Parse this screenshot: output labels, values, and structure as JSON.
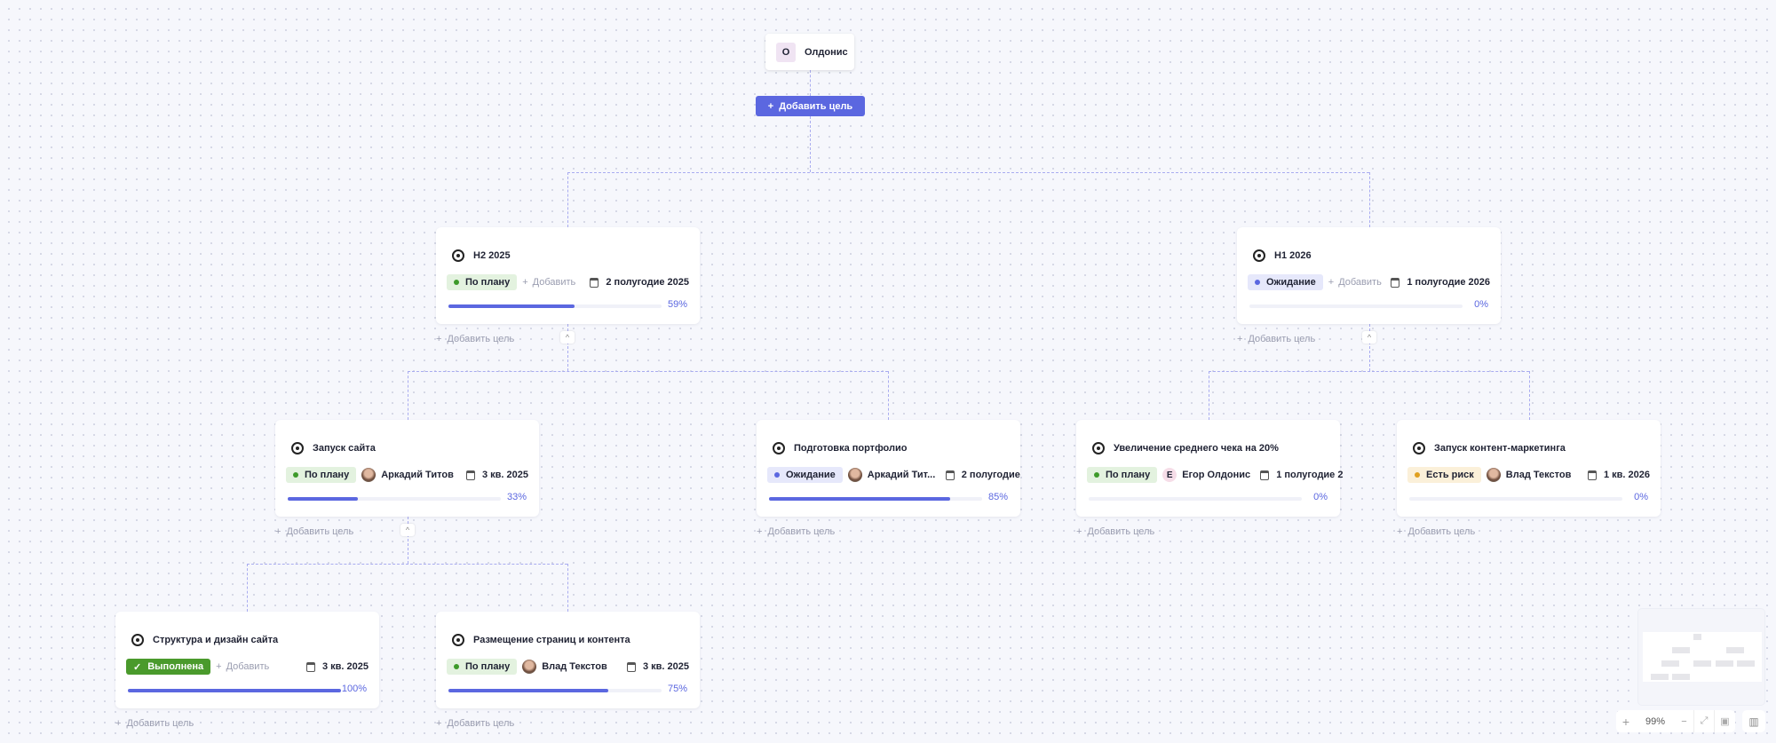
{
  "root": {
    "avatar_letter": "О",
    "name": "Олдонис"
  },
  "add_goal_button": "Добавить цель",
  "add_label": "Добавить",
  "add_child_label": "Добавить цель",
  "colors": {
    "accent": "#5b67e0",
    "on_plan": "#e3f2df",
    "waiting": "#e6e8fb",
    "risk": "#fbf0d9",
    "done": "#4a9a2c"
  },
  "cards": [
    {
      "title": "H2 2025",
      "status": "По плану",
      "status_kind": "on_plan",
      "owner": null,
      "date": "2 полугодие 2025",
      "progress": 59,
      "progress_label": "59%"
    },
    {
      "title": "H1 2026",
      "status": "Ожидание",
      "status_kind": "waiting",
      "owner": null,
      "date": "1 полугодие 2026",
      "progress": 0,
      "progress_label": "0%"
    },
    {
      "title": "Запуск сайта",
      "status": "По плану",
      "status_kind": "on_plan",
      "owner": "Аркадий Титов",
      "date": "3 кв. 2025",
      "progress": 33,
      "progress_label": "33%"
    },
    {
      "title": "Подготовка портфолио",
      "status": "Ожидание",
      "status_kind": "waiting",
      "owner": "Аркадий Тит...",
      "date": "2 полугодие",
      "progress": 85,
      "progress_label": "85%"
    },
    {
      "title": "Увеличение среднего чека на 20%",
      "status": "По плану",
      "status_kind": "on_plan",
      "owner": "Егор Олдонис",
      "owner_letter": "Е",
      "date": "1 полугодие 2",
      "progress": 0,
      "progress_label": "0%"
    },
    {
      "title": "Запуск контент-маркетинга",
      "status": "Есть риск",
      "status_kind": "risk",
      "owner": "Влад Текстов",
      "date": "1 кв. 2026",
      "progress": 0,
      "progress_label": "0%"
    },
    {
      "title": "Структура и дизайн сайта",
      "status": "Выполнена",
      "status_kind": "done",
      "owner": null,
      "date": "3 кв. 2025",
      "progress": 100,
      "progress_label": "100%"
    },
    {
      "title": "Размещение страниц и контента",
      "status": "По плану",
      "status_kind": "on_plan",
      "owner": "Влад Текстов",
      "date": "3 кв. 2025",
      "progress": 75,
      "progress_label": "75%"
    }
  ],
  "zoom": {
    "level": "99%",
    "zoom_in": "+",
    "zoom_out": "−"
  }
}
